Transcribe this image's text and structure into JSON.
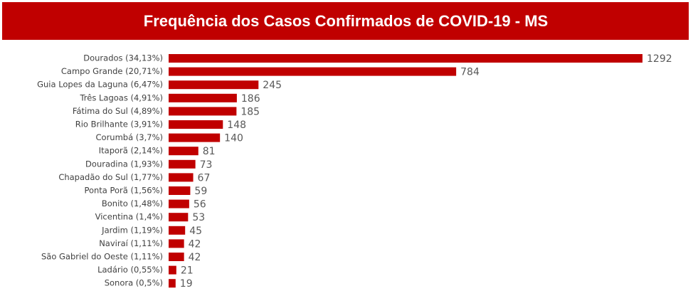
{
  "chart_data": {
    "type": "bar",
    "orientation": "horizontal",
    "title": "Frequência dos Casos Confirmados de COVID-19 - MS",
    "categories": [
      "Dourados (34,13%)",
      "Campo Grande (20,71%)",
      "Guia Lopes da Laguna (6,47%)",
      "Três Lagoas (4,91%)",
      "Fátima do Sul (4,89%)",
      "Rio Brilhante (3,91%)",
      "Corumbá (3,7%)",
      "Itaporã (2,14%)",
      "Douradina (1,93%)",
      "Chapadão do Sul (1,77%)",
      "Ponta Porã (1,56%)",
      "Bonito (1,48%)",
      "Vicentina (1,4%)",
      "Jardim (1,19%)",
      "Naviraí (1,11%)",
      "São Gabriel do Oeste (1,11%)",
      "Ladário (0,55%)",
      "Sonora (0,5%)"
    ],
    "values": [
      1292,
      784,
      245,
      186,
      185,
      148,
      140,
      81,
      73,
      67,
      59,
      56,
      53,
      45,
      42,
      42,
      21,
      19
    ],
    "color": "#c00000"
  }
}
